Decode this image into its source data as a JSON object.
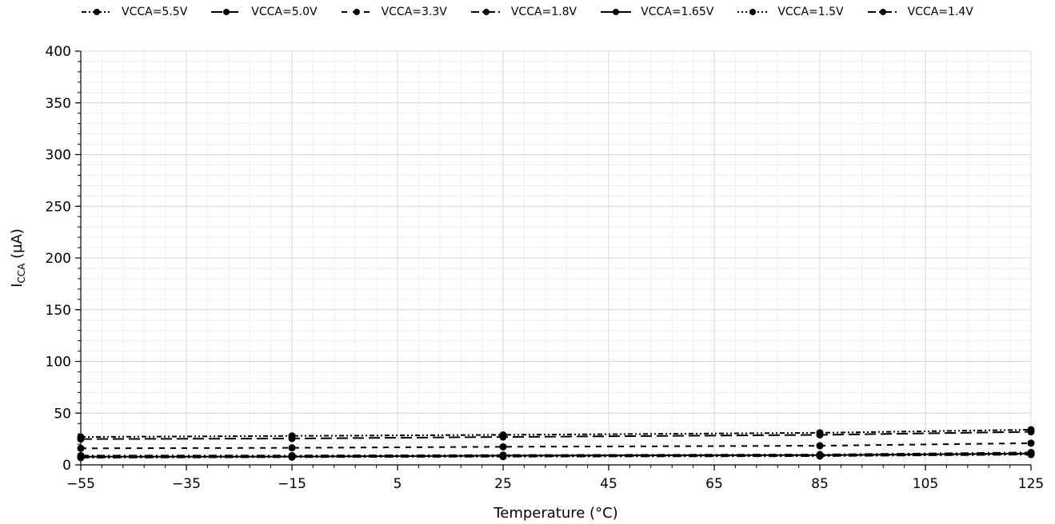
{
  "chart_data": {
    "type": "line",
    "xlabel": "Temperature (°C)",
    "ylabel": "I_CCA (µA)",
    "ylabel_main": "I",
    "ylabel_sub": "CCA",
    "ylabel_unit": " (µA)",
    "xlim": [
      -55,
      125
    ],
    "ylim": [
      0,
      400
    ],
    "x_ticks": [
      -55,
      -35,
      -15,
      5,
      25,
      45,
      65,
      85,
      105,
      125
    ],
    "x_tick_labels": [
      "−55",
      "−35",
      "−15",
      "5",
      "25",
      "45",
      "65",
      "85",
      "105",
      "125"
    ],
    "y_ticks": [
      0,
      50,
      100,
      150,
      200,
      250,
      300,
      350,
      400
    ],
    "y_tick_labels": [
      "0",
      "50",
      "100",
      "150",
      "200",
      "250",
      "300",
      "350",
      "400"
    ],
    "grid": true,
    "legend_position": "top",
    "x": [
      -55,
      -15,
      25,
      85,
      125
    ],
    "series": [
      {
        "name": "VCCA=5.5V",
        "dash": "6,3,2,3,2,3",
        "values": [
          27,
          28,
          29,
          31,
          34
        ]
      },
      {
        "name": "VCCA=5.0V",
        "dash": "14,6",
        "values": [
          25,
          25.5,
          27,
          29,
          32
        ]
      },
      {
        "name": "VCCA=3.3V",
        "dash": "7,7",
        "values": [
          16,
          16.5,
          17.5,
          18.5,
          21
        ]
      },
      {
        "name": "VCCA=1.8V",
        "dash": "10,4,2,4",
        "values": [
          9,
          9,
          9.5,
          10,
          12
        ]
      },
      {
        "name": "VCCA=1.65V",
        "dash": "",
        "values": [
          8,
          8,
          9,
          9.5,
          11
        ]
      },
      {
        "name": "VCCA=1.5V",
        "dash": "2,3",
        "values": [
          7.5,
          8,
          8.5,
          9,
          10.5
        ]
      },
      {
        "name": "VCCA=1.4V",
        "dash": "10,4,2,4",
        "values": [
          7,
          7.5,
          8,
          8.5,
          10
        ]
      }
    ]
  }
}
